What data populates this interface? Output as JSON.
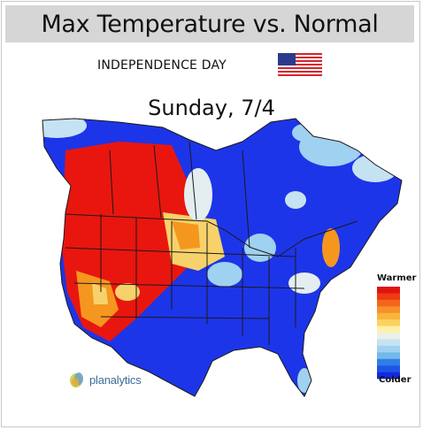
{
  "title": "Max Temperature vs. Normal",
  "holiday": "INDEPENDENCE DAY",
  "date": "Sunday, 7/4",
  "legend": {
    "top_label": "Warmer",
    "bottom_label": "Colder",
    "colors": [
      "#e0140f",
      "#ef3a12",
      "#f5651b",
      "#f7902a",
      "#f9b43c",
      "#fbd262",
      "#fff1a6",
      "#e9f1e8",
      "#c5e2f3",
      "#9fd1f0",
      "#74b9ec",
      "#2f7ee6",
      "#1d56e6",
      "#1628e0"
    ]
  },
  "brand": "planalytics",
  "colors": {
    "warm": "#e8160f",
    "orange": "#f5961f",
    "yellow": "#f7d26a",
    "pale": "#e4eef0",
    "lightblue": "#9fd1f0",
    "blue": "#1d35e8",
    "border_line": "#1a1a1a"
  },
  "icons": [
    "us-flag-icon",
    "planalytics-logo-icon"
  ]
}
